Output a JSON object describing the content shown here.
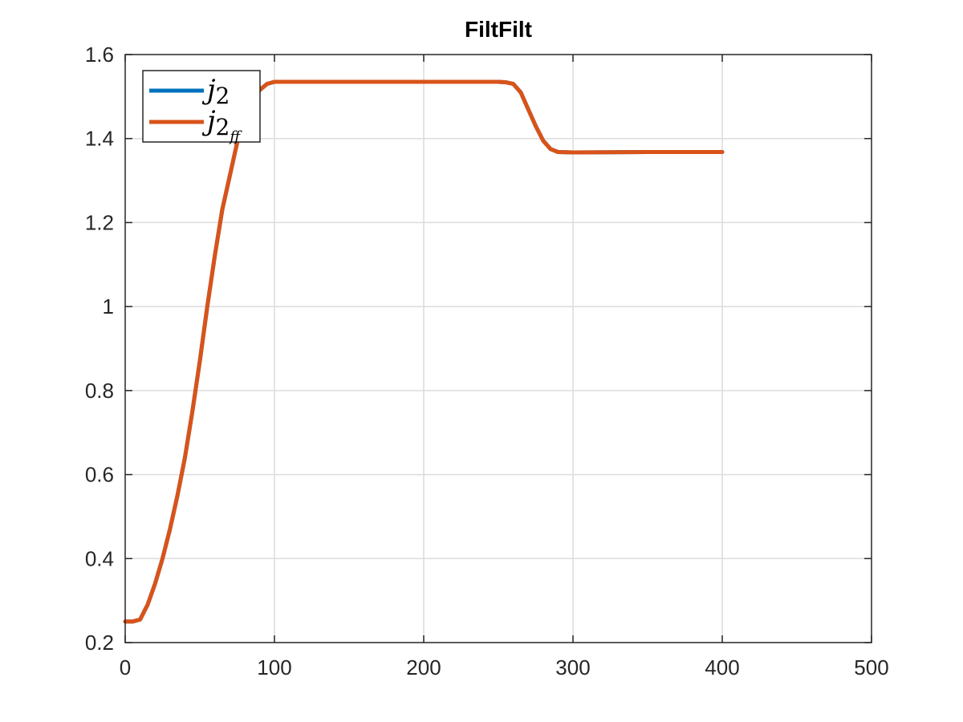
{
  "chart_data": {
    "type": "line",
    "title": "FiltFilt",
    "xlabel": "",
    "ylabel": "",
    "xlim": [
      0,
      500
    ],
    "ylim": [
      0.2,
      1.6
    ],
    "xticks": [
      0,
      100,
      200,
      300,
      400,
      500
    ],
    "xtick_labels": [
      "0",
      "100",
      "200",
      "300",
      "400",
      "500"
    ],
    "yticks": [
      0.2,
      0.4,
      0.6,
      0.8,
      1.0,
      1.2,
      1.4,
      1.6
    ],
    "ytick_labels": [
      "0.2",
      "0.4",
      "0.6",
      "0.8",
      "1",
      "1.2",
      "1.4",
      "1.6"
    ],
    "grid": true,
    "legend_position": "top-left",
    "series": [
      {
        "name": "j2",
        "name_base": "j",
        "name_sub": "2",
        "color": "#0072BD",
        "x": [
          0,
          5,
          10,
          15,
          20,
          25,
          30,
          35,
          40,
          45,
          50,
          55,
          60,
          65,
          70,
          75,
          80,
          85,
          90,
          95,
          100,
          105,
          110,
          150,
          200,
          250,
          255,
          260,
          265,
          270,
          275,
          280,
          285,
          290,
          300,
          350,
          400
        ],
        "y": [
          0.25,
          0.25,
          0.255,
          0.29,
          0.34,
          0.4,
          0.47,
          0.55,
          0.64,
          0.75,
          0.87,
          1.0,
          1.12,
          1.23,
          1.31,
          1.39,
          1.45,
          1.49,
          1.515,
          1.53,
          1.535,
          1.535,
          1.535,
          1.535,
          1.535,
          1.535,
          1.534,
          1.53,
          1.51,
          1.47,
          1.43,
          1.395,
          1.375,
          1.368,
          1.367,
          1.368,
          1.368
        ]
      },
      {
        "name": "j2ff",
        "name_base": "j",
        "name_sub": "2",
        "name_subsub": "ff",
        "color": "#D95319",
        "x": [
          0,
          5,
          10,
          15,
          20,
          25,
          30,
          35,
          40,
          45,
          50,
          55,
          60,
          65,
          70,
          75,
          80,
          85,
          90,
          95,
          100,
          105,
          110,
          150,
          200,
          250,
          255,
          260,
          265,
          270,
          275,
          280,
          285,
          290,
          300,
          350,
          400
        ],
        "y": [
          0.25,
          0.25,
          0.255,
          0.29,
          0.34,
          0.4,
          0.47,
          0.55,
          0.64,
          0.75,
          0.87,
          1.0,
          1.12,
          1.23,
          1.31,
          1.39,
          1.45,
          1.49,
          1.515,
          1.53,
          1.535,
          1.535,
          1.535,
          1.535,
          1.535,
          1.535,
          1.534,
          1.53,
          1.51,
          1.47,
          1.43,
          1.395,
          1.375,
          1.368,
          1.367,
          1.368,
          1.368
        ]
      }
    ]
  }
}
